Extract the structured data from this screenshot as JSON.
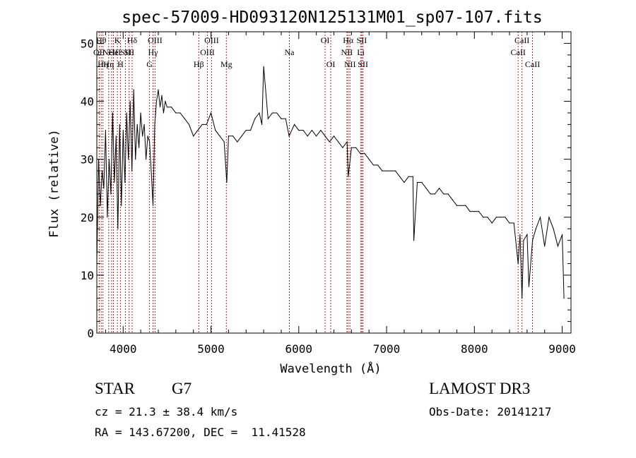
{
  "chart_data": {
    "type": "line",
    "title": "spec-57009-HD093120N125131M01_sp07-107.fits",
    "xlabel": "Wavelength (Å)",
    "ylabel": "Flux (relative)",
    "xlim": [
      3700,
      9100
    ],
    "ylim": [
      0,
      52
    ],
    "xticks": [
      4000,
      5000,
      6000,
      7000,
      8000,
      9000
    ],
    "yticks": [
      0,
      10,
      20,
      30,
      40,
      50
    ],
    "series": [
      {
        "name": "flux",
        "x": [
          3700,
          3720,
          3740,
          3760,
          3780,
          3800,
          3820,
          3840,
          3860,
          3880,
          3900,
          3920,
          3940,
          3960,
          3980,
          4000,
          4020,
          4040,
          4060,
          4080,
          4100,
          4120,
          4140,
          4160,
          4180,
          4200,
          4220,
          4240,
          4260,
          4280,
          4300,
          4320,
          4340,
          4360,
          4380,
          4400,
          4420,
          4440,
          4460,
          4480,
          4500,
          4550,
          4600,
          4650,
          4700,
          4750,
          4800,
          4850,
          4900,
          4950,
          5000,
          5050,
          5100,
          5150,
          5180,
          5200,
          5250,
          5300,
          5350,
          5400,
          5450,
          5500,
          5550,
          5580,
          5600,
          5650,
          5700,
          5750,
          5800,
          5850,
          5890,
          5950,
          6000,
          6050,
          6100,
          6150,
          6200,
          6250,
          6300,
          6350,
          6400,
          6450,
          6500,
          6550,
          6563,
          6600,
          6650,
          6700,
          6750,
          6800,
          6850,
          6900,
          6950,
          7000,
          7050,
          7100,
          7150,
          7200,
          7250,
          7300,
          7310,
          7350,
          7400,
          7450,
          7500,
          7550,
          7600,
          7650,
          7700,
          7750,
          7800,
          7850,
          7900,
          7950,
          8000,
          8050,
          8100,
          8150,
          8200,
          8250,
          8300,
          8350,
          8400,
          8450,
          8498,
          8520,
          8542,
          8560,
          8600,
          8620,
          8662,
          8700,
          8750,
          8800,
          8850,
          8900,
          8950,
          9000,
          9020
        ],
        "values": [
          12,
          30,
          22,
          28,
          25,
          35,
          20,
          30,
          24,
          38,
          26,
          34,
          18,
          36,
          22,
          35,
          26,
          38,
          30,
          40,
          28,
          42,
          30,
          36,
          32,
          38,
          34,
          36,
          30,
          34,
          33,
          28,
          22,
          36,
          40,
          42,
          39,
          41,
          38,
          40,
          39,
          39,
          38,
          38,
          37,
          36,
          34,
          35,
          36,
          36,
          38,
          35,
          34,
          33,
          26,
          34,
          34,
          33,
          34,
          35,
          35,
          37,
          38,
          36,
          46,
          37,
          38,
          38,
          37,
          37,
          34,
          36,
          35,
          35,
          34,
          35,
          34,
          35,
          34,
          33,
          34,
          33,
          32,
          33,
          27,
          32,
          32,
          31,
          31,
          30,
          29,
          29,
          28,
          28,
          28,
          28,
          27,
          26,
          27,
          27,
          16,
          26,
          26,
          25,
          24,
          24,
          25,
          24,
          24,
          23,
          22,
          22,
          22,
          21,
          21,
          21,
          20,
          20,
          19,
          20,
          20,
          20,
          19,
          19,
          12,
          17,
          6,
          16,
          17,
          8,
          16,
          18,
          20,
          15,
          20,
          18,
          15,
          17,
          6
        ]
      }
    ],
    "lines": [
      {
        "w": 3750,
        "label": "Hθ",
        "row": 0
      },
      {
        "w": 3727,
        "label": "OII",
        "row": 1
      },
      {
        "w": 3770,
        "label": "Hη",
        "row": 2
      },
      {
        "w": 3835,
        "label": "Hη",
        "row": 2
      },
      {
        "w": 3869,
        "label": "NeIII",
        "row": 1
      },
      {
        "w": 3889,
        "label": "He",
        "row": 1
      },
      {
        "w": 3934,
        "label": "K",
        "row": 0
      },
      {
        "w": 3969,
        "label": "H",
        "row": 2
      },
      {
        "w": 4026,
        "label": "SII",
        "row": 1
      },
      {
        "w": 4069,
        "label": "SII",
        "row": 1
      },
      {
        "w": 4102,
        "label": "Hδ",
        "row": 0
      },
      {
        "w": 4300,
        "label": "G",
        "row": 2
      },
      {
        "w": 4340,
        "label": "Hγ",
        "row": 1
      },
      {
        "w": 4363,
        "label": "OIII",
        "row": 0
      },
      {
        "w": 4861,
        "label": "Hβ",
        "row": 2
      },
      {
        "w": 4959,
        "label": "OIII",
        "row": 1
      },
      {
        "w": 5007,
        "label": "OIII",
        "row": 0
      },
      {
        "w": 5175,
        "label": "Mg",
        "row": 2
      },
      {
        "w": 5893,
        "label": "Na",
        "row": 1
      },
      {
        "w": 6300,
        "label": "OI",
        "row": 0
      },
      {
        "w": 6364,
        "label": "OI",
        "row": 2
      },
      {
        "w": 6548,
        "label": "NII",
        "row": 1
      },
      {
        "w": 6563,
        "label": "Hα",
        "row": 0
      },
      {
        "w": 6583,
        "label": "NII",
        "row": 2
      },
      {
        "w": 6707,
        "label": "Li",
        "row": 1
      },
      {
        "w": 6717,
        "label": "SII",
        "row": 0
      },
      {
        "w": 6731,
        "label": "SII",
        "row": 2
      },
      {
        "w": 8498,
        "label": "CaII",
        "row": 1
      },
      {
        "w": 8542,
        "label": "CaII",
        "row": 0
      },
      {
        "w": 8662,
        "label": "CaII",
        "row": 2
      }
    ],
    "colors": {
      "line": "#000000",
      "marker": "#b22222"
    }
  },
  "info": {
    "class": "STAR",
    "subclass": "G7",
    "survey": "LAMOST DR3",
    "cz": "cz = 21.3 ± 38.4 km/s",
    "obs_date": "Obs-Date: 20141217",
    "coords": "RA = 143.67200, DEC =  11.41528"
  }
}
